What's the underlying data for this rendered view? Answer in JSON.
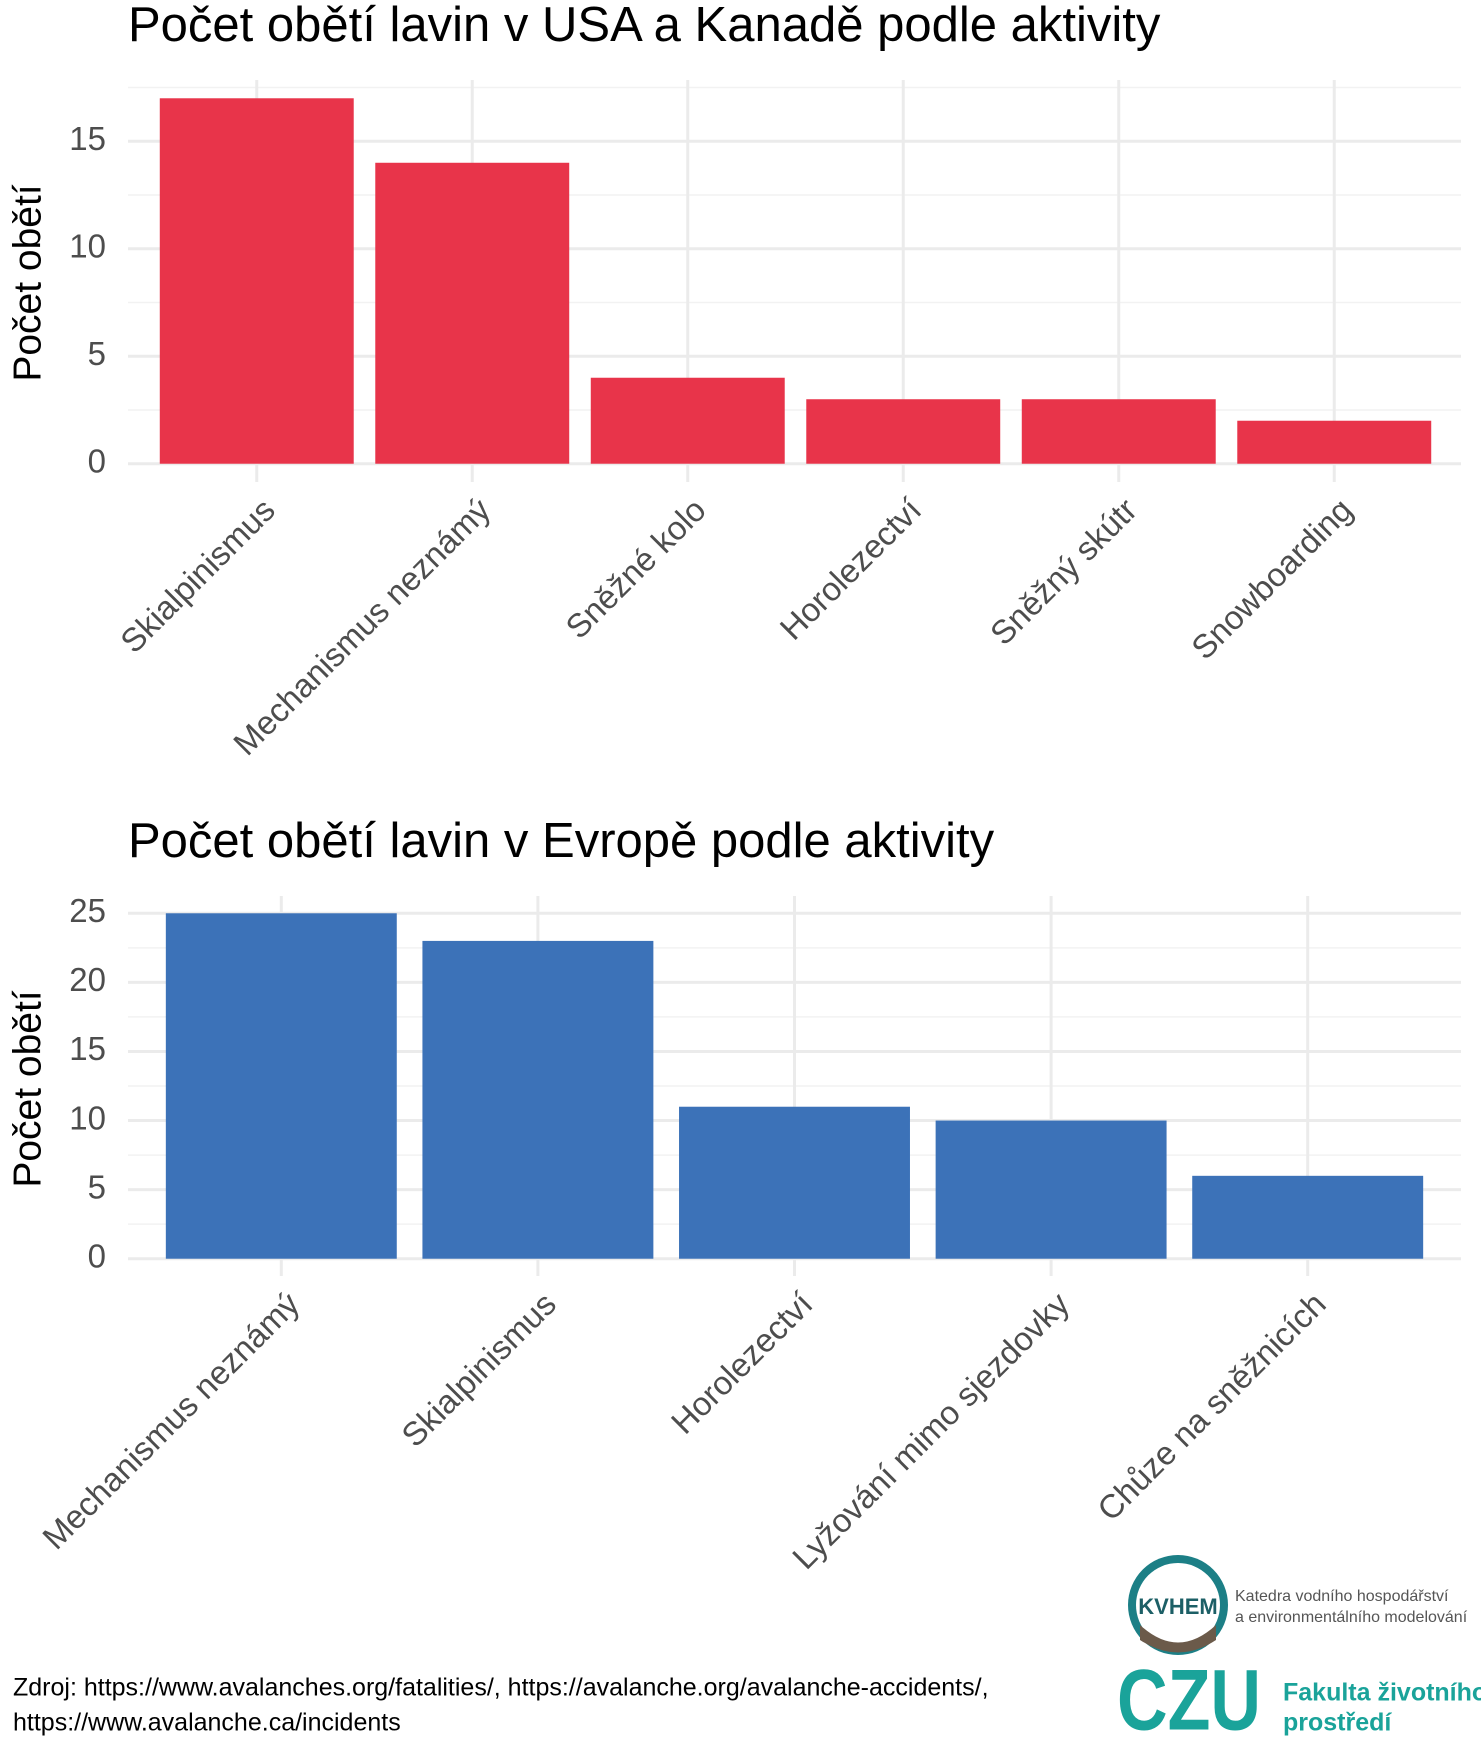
{
  "chart_data": [
    {
      "type": "bar",
      "title": "Počet obětí lavin v USA a Kanadě podle aktivity",
      "y_label": "Počet obětí",
      "categories": [
        "Skialpinismus",
        "Mechanismus neznámý",
        "Sněžné kolo",
        "Horolezectví",
        "Sněžný skútr",
        "Snowboarding"
      ],
      "values": [
        17,
        14,
        4,
        3,
        3,
        2
      ],
      "color": "#e8344a",
      "ylim": [
        -0.85,
        17.85
      ],
      "yticks": [
        0,
        5,
        10,
        15
      ],
      "minor_yticks": [
        2.5,
        7.5,
        12.5,
        17.5
      ],
      "grid": true
    },
    {
      "type": "bar",
      "title": "Počet obětí lavin v Evropě podle aktivity",
      "y_label": "Počet obětí",
      "categories": [
        "Mechanismus neznámý",
        "Skialpinismus",
        "Horolezectví",
        "Lyžování mimo sjezdovky",
        "Chůze na sněžnicích"
      ],
      "values": [
        25,
        23,
        11,
        10,
        6
      ],
      "color": "#3c72b8",
      "ylim": [
        -1.25,
        26.25
      ],
      "yticks": [
        0,
        5,
        10,
        15,
        20,
        25
      ],
      "minor_yticks": [
        2.5,
        7.5,
        12.5,
        17.5,
        22.5
      ],
      "grid": true
    }
  ],
  "footer": {
    "source_lines": [
      "Zdroj: https://www.avalanches.org/fatalities/, https://avalanche.org/avalanche-accidents/,",
      "https://www.avalanche.ca/incidents"
    ],
    "kvhem_logo": "KVHEM",
    "kvhem_lines": [
      "Katedra vodního hospodářství",
      "a environmentálního modelování"
    ],
    "czu_logo": "CZU",
    "faculty_lines": [
      "Fakulta životního",
      "prostředí"
    ]
  }
}
